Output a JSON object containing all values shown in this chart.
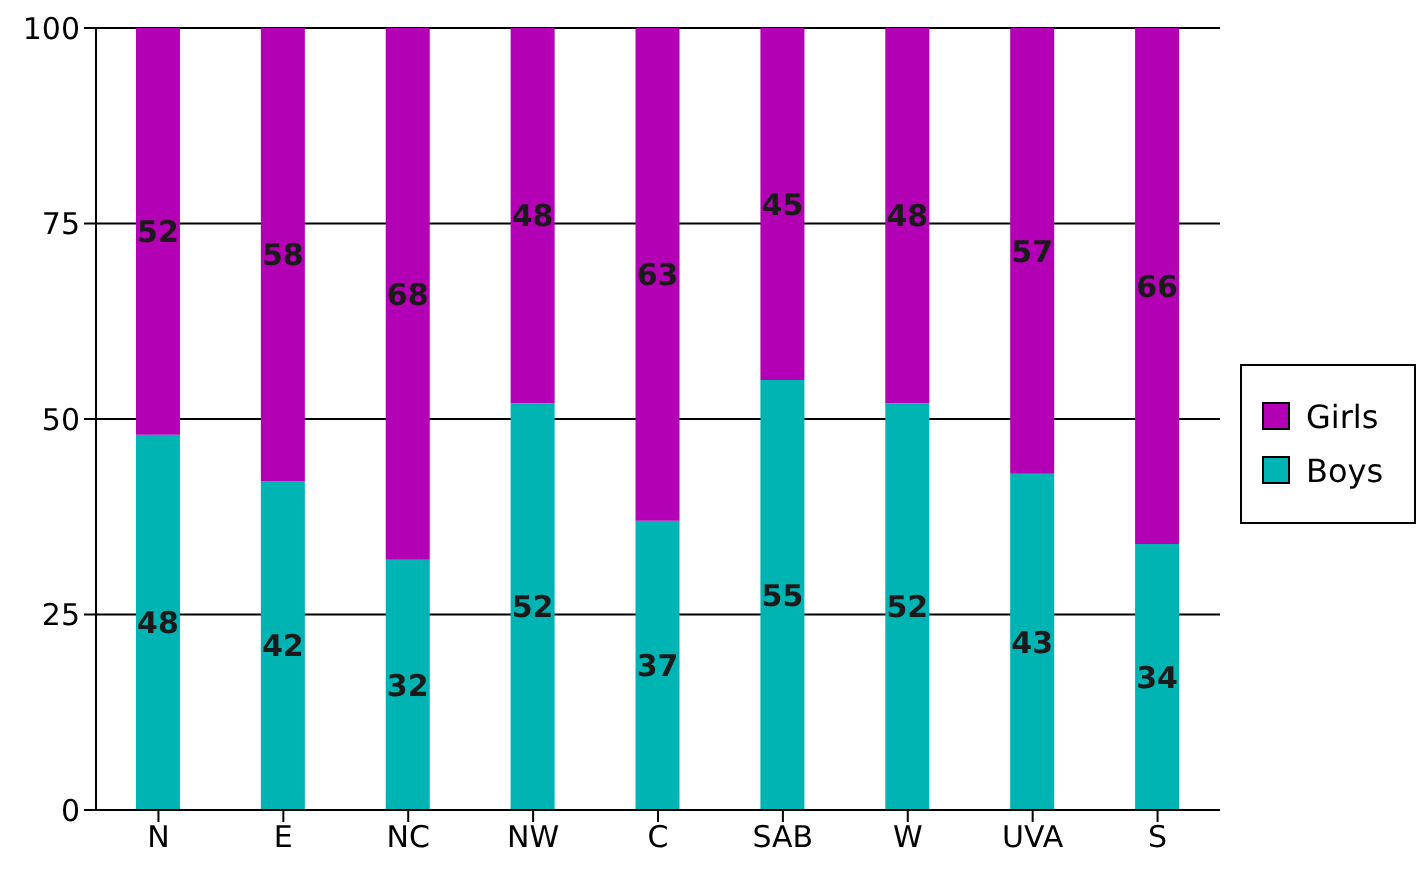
{
  "chart_data": {
    "type": "bar",
    "stacked": true,
    "categories": [
      "N",
      "E",
      "NC",
      "NW",
      "C",
      "SAB",
      "W",
      "UVA",
      "S"
    ],
    "series": [
      {
        "name": "Boys",
        "color": "#00b4b4",
        "values": [
          48,
          42,
          32,
          52,
          37,
          55,
          52,
          43,
          34
        ]
      },
      {
        "name": "Girls",
        "color": "#b400b4",
        "values": [
          52,
          58,
          68,
          48,
          63,
          45,
          48,
          57,
          66
        ]
      }
    ],
    "ylim": [
      0,
      100
    ],
    "yticks": [
      0,
      25,
      50,
      75,
      100
    ],
    "grid": "y",
    "legend": "right",
    "data_labels": true
  }
}
